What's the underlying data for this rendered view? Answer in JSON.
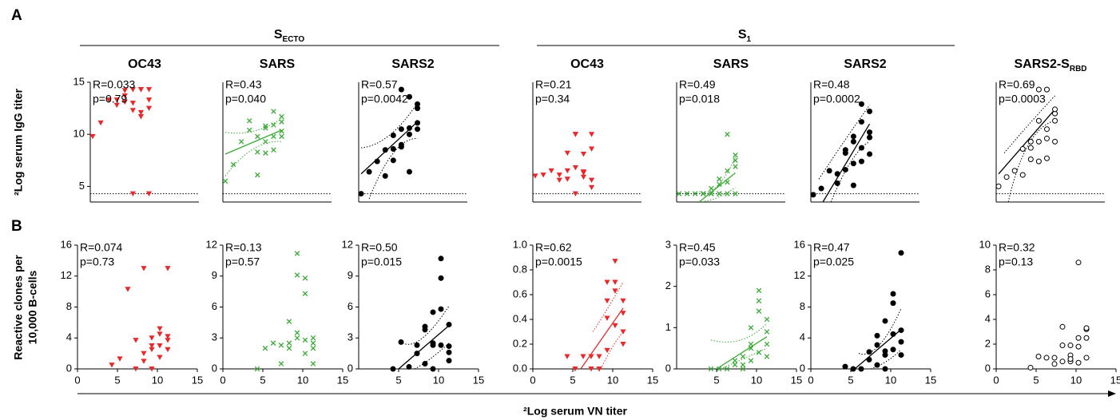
{
  "figure": {
    "panel_labels": [
      "A",
      "B"
    ],
    "groups": [
      {
        "text": "S",
        "sub": "ECTO"
      },
      {
        "text": "S",
        "sub": "1"
      }
    ],
    "y_labels": [
      "²Log serum IgG titer",
      "Reactive clones per",
      "10,000 B-cells"
    ],
    "x_label": "²Log serum VN titer"
  },
  "chart_data": [
    {
      "type": "scatter",
      "title": "OC43",
      "marker": "triangle",
      "color": "#e8282b",
      "xlim": [
        4,
        17.5
      ],
      "ylim": [
        3.5,
        15
      ],
      "yticks": [
        5,
        10,
        15
      ],
      "threshold": 4.3,
      "annotations": [
        "R=0.033",
        "p=0.79"
      ],
      "x": [
        4.3,
        5.3,
        6.3,
        7.3,
        7.3,
        8.3,
        8.3,
        8.3,
        9.3,
        9.3,
        9.3,
        9.3,
        10.3,
        10.3,
        10.3,
        10.3,
        11.3,
        11.3,
        11.3,
        11.3
      ],
      "values": [
        9.8,
        11.1,
        13.3,
        13.3,
        12.8,
        14.2,
        13.1,
        13.7,
        14.3,
        12.3,
        4.3,
        13,
        14.3,
        11.7,
        12.1,
        14.3,
        14.3,
        4.3,
        13.3,
        12.5
      ]
    },
    {
      "type": "scatter",
      "title": "SARS",
      "marker": "cross",
      "color": "#3aaa35",
      "xlim": [
        4,
        17.5
      ],
      "ylim": [
        3.5,
        15
      ],
      "threshold": 4.3,
      "annotations": [
        "R=0.43",
        "p=0.040"
      ],
      "x": [
        4.3,
        5.3,
        6.3,
        7.3,
        7.3,
        8.3,
        8.3,
        8.3,
        9.3,
        9.3,
        9.3,
        9.3,
        10.3,
        10.3,
        10.3,
        10.3,
        11.3,
        11.3,
        11.3,
        11.3
      ],
      "values": [
        5.5,
        7.1,
        9.3,
        11.3,
        10.4,
        8.3,
        9.8,
        6.1,
        10.8,
        9.3,
        10.6,
        8.2,
        12.2,
        10.9,
        8.5,
        9.8,
        11.7,
        11.2,
        10.3,
        9.8
      ],
      "fit": {
        "x": [
          4.3,
          11.3
        ],
        "y": [
          8.1,
          10.4
        ]
      },
      "ci_upper": {
        "x": [
          4.3,
          7.8,
          11.3
        ],
        "y": [
          10.2,
          10.3,
          11.5
        ]
      },
      "ci_lower": {
        "x": [
          4.3,
          7.8,
          11.3
        ],
        "y": [
          6.0,
          8.6,
          9.3
        ]
      }
    },
    {
      "type": "scatter",
      "title": "SARS2",
      "marker": "dot",
      "color": "#000000",
      "xlim": [
        4,
        17.5
      ],
      "ylim": [
        3.5,
        15
      ],
      "threshold": 4.3,
      "annotations": [
        "R=0.57",
        "p=0.0042"
      ],
      "x": [
        4.3,
        5.3,
        6.3,
        7.3,
        7.3,
        8.3,
        8.3,
        8.3,
        9.3,
        9.3,
        9.3,
        9.3,
        10.3,
        10.3,
        10.3,
        10.3,
        11.3,
        11.3,
        11.3,
        11.3
      ],
      "values": [
        4.3,
        6.4,
        7.4,
        6,
        8.5,
        9.9,
        7.5,
        8.6,
        10.5,
        14.3,
        9,
        8.8,
        10,
        10.6,
        6.4,
        13.6,
        12.5,
        12.9,
        11.1,
        10.5
      ],
      "fit": {
        "x": [
          4.3,
          11.3
        ],
        "y": [
          6.2,
          11.2
        ]
      },
      "ci_upper": {
        "x": [
          4.3,
          7.8,
          11.3
        ],
        "y": [
          8.7,
          9.9,
          13.0
        ]
      },
      "ci_lower": {
        "x": [
          5.3,
          8.3,
          11.3
        ],
        "y": [
          3.8,
          8.2,
          9.6
        ]
      }
    },
    {
      "type": "scatter",
      "title": "OC43",
      "marker": "triangle",
      "color": "#e8282b",
      "xlim": [
        4,
        17.5
      ],
      "ylim": [
        3.5,
        15
      ],
      "threshold": 4.3,
      "annotations": [
        "R=0.21",
        "p=0.34"
      ],
      "x": [
        4.3,
        5.3,
        6.3,
        7.3,
        7.3,
        8.3,
        8.3,
        8.3,
        9.3,
        9.3,
        9.3,
        9.3,
        10.3,
        10.3,
        10.3,
        10.3,
        11.3,
        11.3,
        11.3,
        11.3
      ],
      "values": [
        6.0,
        6.1,
        6.5,
        5.6,
        6.1,
        5.7,
        8.2,
        6.5,
        4.3,
        6.8,
        10,
        10,
        8.1,
        6.3,
        5.9,
        6.4,
        10,
        8.6,
        5.6,
        4.9
      ]
    },
    {
      "type": "scatter",
      "title": "SARS",
      "marker": "cross",
      "color": "#3aaa35",
      "xlim": [
        4,
        17.5
      ],
      "ylim": [
        3.5,
        15
      ],
      "threshold": 4.3,
      "annotations": [
        "R=0.49",
        "p=0.018"
      ],
      "x": [
        4.3,
        5.3,
        6.3,
        7.3,
        7.3,
        8.3,
        8.3,
        8.3,
        9.3,
        9.3,
        9.3,
        9.3,
        10.3,
        10.3,
        10.3,
        10.3,
        11.3,
        11.3,
        11.3,
        11.3
      ],
      "values": [
        4.3,
        4.3,
        4.3,
        4.3,
        4.3,
        4.3,
        4.8,
        4.3,
        4.3,
        5.2,
        4.3,
        5.7,
        4.3,
        10,
        6.5,
        5.4,
        4.3,
        8,
        7.5,
        6.9
      ],
      "fit": {
        "x": [
          6.8,
          11.3
        ],
        "y": [
          3.5,
          6.3
        ]
      },
      "ci_upper": {
        "x": [
          6.8,
          9,
          11.3
        ],
        "y": [
          4.5,
          5.0,
          7.8
        ]
      },
      "ci_lower": {
        "x": [
          6.8,
          9,
          11.3
        ],
        "y": [
          3.5,
          3.9,
          4.9
        ]
      }
    },
    {
      "type": "scatter",
      "title": "SARS2",
      "marker": "dot",
      "color": "#000000",
      "xlim": [
        4,
        17.5
      ],
      "ylim": [
        3.5,
        15
      ],
      "threshold": 4.3,
      "annotations": [
        "R=0.48",
        "p=0.0002"
      ],
      "x": [
        4.3,
        5.3,
        6.3,
        7.3,
        7.3,
        8.3,
        8.3,
        8.3,
        9.3,
        9.3,
        9.3,
        9.3,
        10.3,
        10.3,
        10.3,
        10.3,
        11.3,
        11.3,
        11.3,
        11.3
      ],
      "values": [
        4.2,
        4.8,
        6.5,
        5.3,
        6.2,
        8.2,
        8.5,
        6.6,
        9.3,
        7.2,
        9.8,
        5.1,
        7.4,
        12.9,
        11.2,
        8.7,
        12.2,
        10.2,
        8.1,
        9.7
      ],
      "fit": {
        "x": [
          5.5,
          11.3
        ],
        "y": [
          3.5,
          11.0
        ]
      },
      "ci_upper": {
        "x": [
          5,
          8.3,
          11.3
        ],
        "y": [
          5.7,
          9.5,
          12.8
        ]
      },
      "ci_lower": {
        "x": [
          6.5,
          9,
          11.3
        ],
        "y": [
          3.5,
          7.4,
          9.3
        ]
      }
    },
    {
      "type": "scatter",
      "title": "SARS2-S",
      "title_sub": "RBD",
      "marker": "ring",
      "color": "#000000",
      "xlim": [
        4,
        17.5
      ],
      "ylim": [
        3.5,
        15
      ],
      "threshold": 4.3,
      "annotations": [
        "R=0.69",
        "p=0.0003"
      ],
      "x": [
        4.3,
        5.3,
        6.3,
        7.3,
        7.3,
        8.3,
        8.3,
        8.3,
        9.3,
        9.3,
        9.3,
        9.3,
        10.3,
        10.3,
        10.3,
        10.3,
        11.3,
        11.3,
        11.3,
        11.3
      ],
      "values": [
        5.0,
        5.9,
        6.5,
        8.6,
        6.1,
        9.3,
        7.6,
        8.7,
        14.3,
        9.3,
        11.3,
        7.4,
        14.3,
        10.5,
        9.6,
        7.7,
        12,
        12.4,
        11.3,
        9.3
      ],
      "fit": {
        "x": [
          4.3,
          11.3
        ],
        "y": [
          6.2,
          12.4
        ]
      },
      "ci_upper": {
        "x": [
          5,
          8,
          11.3
        ],
        "y": [
          8.2,
          10.9,
          13.7
        ]
      },
      "ci_lower": {
        "x": [
          5.5,
          8,
          11.3
        ],
        "y": [
          3.5,
          9.0,
          11.3
        ]
      }
    },
    {
      "type": "scatter",
      "marker": "triangle",
      "color": "#e8282b",
      "xlim": [
        0,
        15
      ],
      "xticks": [
        0,
        5,
        10,
        15
      ],
      "ylim": [
        0,
        16
      ],
      "yticks": [
        0,
        4,
        8,
        12,
        16
      ],
      "annotations": [
        "R=0.074",
        "p=0.73"
      ],
      "x": [
        4.3,
        5.3,
        6.3,
        7.3,
        7.3,
        8.3,
        8.3,
        8.3,
        9.3,
        9.3,
        9.3,
        9.3,
        10.3,
        10.3,
        10.3,
        10.3,
        11.3,
        11.3,
        11.3,
        11.3
      ],
      "values": [
        0.5,
        1.3,
        10.3,
        0,
        3.7,
        2,
        13,
        1,
        4,
        2.5,
        0,
        3,
        5.2,
        4.5,
        1.5,
        3,
        13,
        3.7,
        4.2,
        2.5
      ]
    },
    {
      "type": "scatter",
      "marker": "cross",
      "color": "#3aaa35",
      "xlim": [
        0,
        15
      ],
      "xticks": [
        0,
        5,
        10,
        15
      ],
      "ylim": [
        0,
        12
      ],
      "yticks": [
        0,
        3,
        6,
        9,
        12
      ],
      "annotations": [
        "R=0.13",
        "p=0.57"
      ],
      "x": [
        4.3,
        5.3,
        6.3,
        7.3,
        7.3,
        8.3,
        8.3,
        8.3,
        9.3,
        9.3,
        9.3,
        9.3,
        10.3,
        10.3,
        10.3,
        10.3,
        11.3,
        11.3,
        11.3,
        11.3
      ],
      "values": [
        0,
        2,
        2.5,
        2.3,
        0.5,
        2,
        4.6,
        2.5,
        3.5,
        11.2,
        3,
        9.1,
        1.5,
        2.8,
        8.8,
        7.3,
        0.5,
        2,
        3,
        2.5
      ]
    },
    {
      "type": "scatter",
      "marker": "dot",
      "color": "#000000",
      "xlim": [
        0,
        15
      ],
      "xticks": [
        5,
        10,
        15
      ],
      "ylim": [
        0,
        12
      ],
      "yticks": [
        0,
        3,
        6,
        9,
        12
      ],
      "annotations": [
        "R=0.50",
        "p=0.015"
      ],
      "x": [
        4.3,
        5.3,
        6.3,
        7.3,
        7.3,
        8.3,
        8.3,
        8.3,
        9.3,
        9.3,
        9.3,
        9.3,
        10.3,
        10.3,
        10.3,
        10.3,
        11.3,
        11.3,
        11.3,
        11.3
      ],
      "values": [
        0,
        2.6,
        0.2,
        1.5,
        2.3,
        0.5,
        3.8,
        4.1,
        2.3,
        0,
        2.5,
        5.5,
        8.8,
        10.7,
        2.3,
        5.8,
        4.3,
        2.2,
        1.6,
        0.8
      ],
      "fit": {
        "x": [
          5,
          11.3
        ],
        "y": [
          0,
          4.2
        ]
      },
      "ci_upper": {
        "x": [
          5.5,
          8,
          11.3
        ],
        "y": [
          2.5,
          3,
          6.1
        ]
      },
      "ci_lower": {
        "x": [
          7,
          9,
          11.3
        ],
        "y": [
          0,
          1,
          2.5
        ]
      }
    },
    {
      "type": "scatter",
      "marker": "triangle",
      "color": "#e8282b",
      "xlim": [
        0,
        15
      ],
      "xticks": [
        0,
        5,
        10,
        15
      ],
      "ylim": [
        0,
        1
      ],
      "yticks": [
        {
          "value": 0,
          "label": "0.0"
        },
        0.2,
        0.4,
        0.6,
        0.8,
        {
          "value": 1,
          "label": "1.0"
        }
      ],
      "annotations": [
        "R=0.62",
        "p=0.0015"
      ],
      "x": [
        4.3,
        5.3,
        6.3,
        7.3,
        7.3,
        8.3,
        8.3,
        8.3,
        9.3,
        9.3,
        9.3,
        9.3,
        10.3,
        10.3,
        10.3,
        10.3,
        11.3,
        11.3,
        11.3,
        11.3
      ],
      "values": [
        0.1,
        0,
        0.1,
        0.1,
        0,
        0.1,
        0,
        0,
        0.55,
        0.41,
        0.15,
        0.7,
        0.63,
        0.87,
        0.35,
        0.7,
        0.45,
        0.55,
        0.3,
        0.2
      ],
      "fit": {
        "x": [
          6,
          11.3
        ],
        "y": [
          0,
          0.49
        ]
      },
      "ci_upper": {
        "x": [
          7.5,
          9,
          11.3
        ],
        "y": [
          0.3,
          0.45,
          0.7
        ]
      },
      "ci_lower": {
        "x": [
          8.5,
          10,
          11.3
        ],
        "y": [
          0,
          0.18,
          0.3
        ]
      }
    },
    {
      "type": "scatter",
      "marker": "cross",
      "color": "#3aaa35",
      "xlim": [
        0,
        15
      ],
      "xticks": [
        5,
        10,
        15
      ],
      "ylim": [
        0,
        3
      ],
      "yticks": [
        0,
        1,
        2,
        3
      ],
      "annotations": [
        "R=0.45",
        "p=0.033"
      ],
      "x": [
        4.3,
        5.3,
        6.3,
        7.3,
        7.3,
        8.3,
        8.3,
        8.3,
        9.3,
        9.3,
        9.3,
        9.3,
        10.3,
        10.3,
        10.3,
        10.3,
        11.3,
        11.3,
        11.3,
        11.3
      ],
      "values": [
        0,
        0,
        0,
        0.1,
        0.2,
        0.3,
        0.1,
        0,
        0.5,
        0.2,
        1.0,
        0.6,
        0.4,
        1.9,
        1.65,
        1.4,
        1.2,
        0.9,
        0.6,
        0.3
      ],
      "fit": {
        "x": [
          5,
          11.3
        ],
        "y": [
          0,
          0.78
        ]
      },
      "ci_upper": {
        "x": [
          4.3,
          8,
          11.3
        ],
        "y": [
          0.7,
          0.7,
          1.1
        ]
      },
      "ci_lower": {
        "x": [
          5.5,
          9,
          11.3
        ],
        "y": [
          0,
          0.3,
          0.5
        ]
      }
    },
    {
      "type": "scatter",
      "marker": "dot",
      "color": "#000000",
      "xlim": [
        0,
        15
      ],
      "xticks": [
        0,
        5,
        10,
        15
      ],
      "ylim": [
        0,
        16
      ],
      "yticks": [
        0,
        4,
        8,
        12,
        16
      ],
      "annotations": [
        "R=0.47",
        "p=0.025"
      ],
      "x": [
        4.3,
        5.3,
        6.3,
        7.3,
        7.3,
        8.3,
        8.3,
        8.3,
        9.3,
        9.3,
        9.3,
        9.3,
        10.3,
        10.3,
        10.3,
        10.3,
        11.3,
        11.3,
        11.3,
        11.3
      ],
      "values": [
        0.3,
        0,
        0,
        2.2,
        1.2,
        0.5,
        4.3,
        3.1,
        1.8,
        0,
        2.3,
        6.2,
        4.5,
        9.7,
        8.5,
        2.5,
        15,
        5,
        3.5,
        1.8
      ],
      "fit": {
        "x": [
          5.5,
          11.3
        ],
        "y": [
          0,
          5.1
        ]
      },
      "ci_upper": {
        "x": [
          6,
          8.5,
          11.3
        ],
        "y": [
          2,
          3,
          7.8
        ]
      },
      "ci_lower": {
        "x": [
          7.5,
          9.5,
          11.3
        ],
        "y": [
          0,
          1,
          2.5
        ]
      }
    },
    {
      "type": "scatter",
      "marker": "ring",
      "color": "#000000",
      "xlim": [
        0,
        15
      ],
      "xticks": [
        0,
        5,
        10,
        15
      ],
      "ylim": [
        0,
        10
      ],
      "yticks": [
        0,
        2,
        4,
        6,
        8,
        10
      ],
      "annotations": [
        "R=0.32",
        "p=0.13"
      ],
      "x": [
        4.3,
        5.3,
        6.3,
        7.3,
        7.3,
        8.3,
        8.3,
        8.3,
        9.3,
        9.3,
        9.3,
        9.3,
        10.3,
        10.3,
        10.3,
        10.3,
        11.3,
        11.3,
        11.3,
        11.3
      ],
      "values": [
        0.1,
        1,
        0.9,
        0.9,
        0.4,
        0.6,
        1.9,
        3.4,
        0.6,
        1.1,
        1.9,
        0.8,
        8.6,
        1.8,
        2.5,
        0.5,
        3.2,
        2.5,
        3.3,
        0.9
      ]
    }
  ]
}
